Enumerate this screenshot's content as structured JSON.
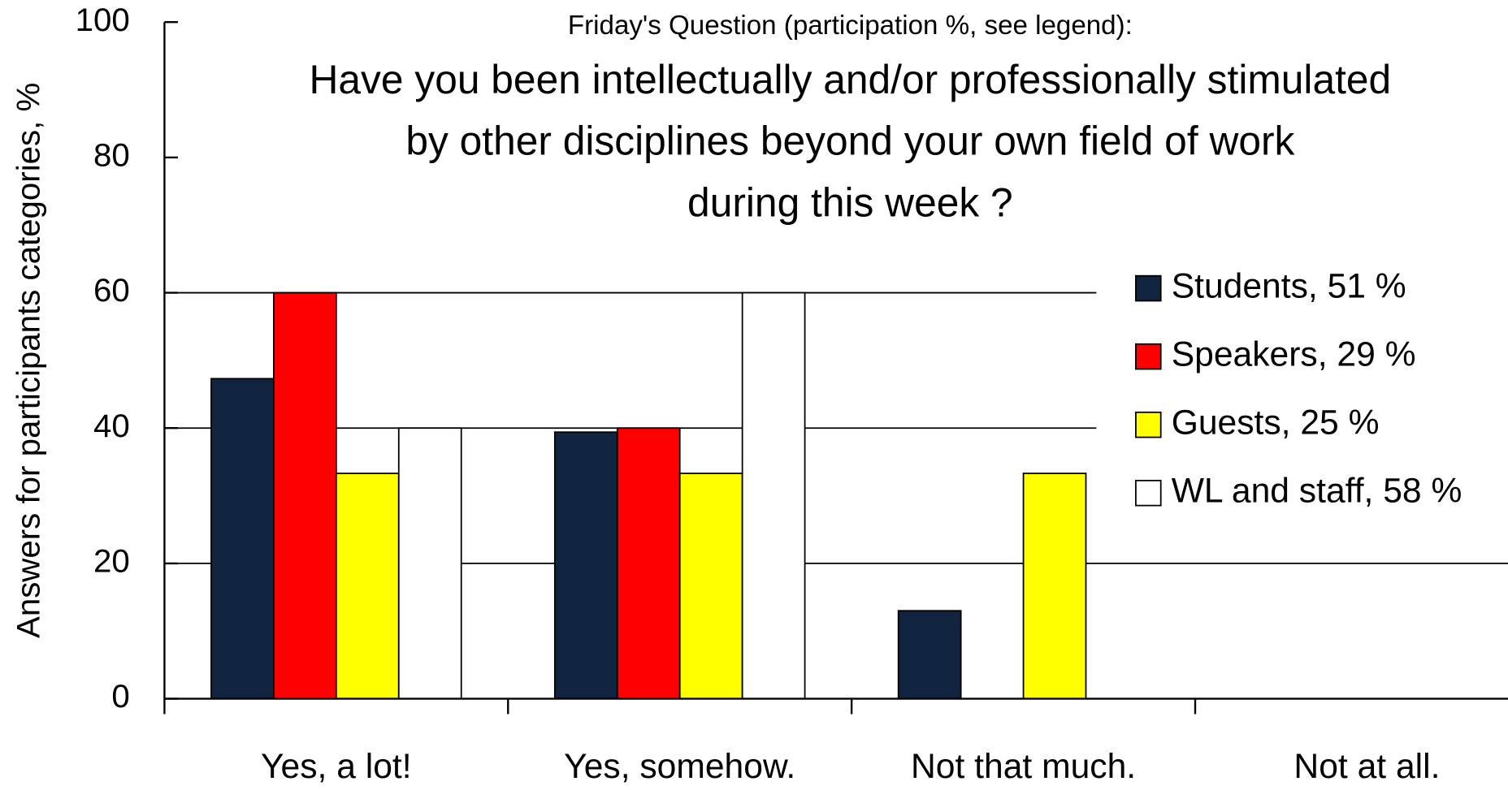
{
  "chart_data": {
    "type": "bar",
    "subtitle": "Friday's Question (participation %, see legend):",
    "title": [
      "Have you been intellectually and/or professionally stimulated",
      "by other disciplines beyond your own field of work",
      "during this week ?"
    ],
    "y_label": "Answers for participants categories, %",
    "categories": [
      "Yes, a lot!",
      "Yes, somehow.",
      "Not that much.",
      "Not at all."
    ],
    "series": [
      {
        "name": "Students, 51 %",
        "color": "#10233f",
        "values": [
          47.3,
          39.4,
          13.0,
          0
        ]
      },
      {
        "name": "Speakers, 29 %",
        "color": "#ff0000",
        "values": [
          60,
          40,
          0,
          0
        ]
      },
      {
        "name": "Guests, 25 %",
        "color": "#ffff00",
        "values": [
          33.3,
          33.3,
          33.3,
          0
        ]
      },
      {
        "name": "WL and staff, 58 %",
        "color": "#ffffff",
        "values": [
          40,
          60,
          0,
          0
        ]
      }
    ],
    "ylim": [
      0,
      100
    ],
    "yticks": [
      0,
      20,
      40,
      60,
      80,
      100
    ],
    "grid": true,
    "legend": "right"
  }
}
